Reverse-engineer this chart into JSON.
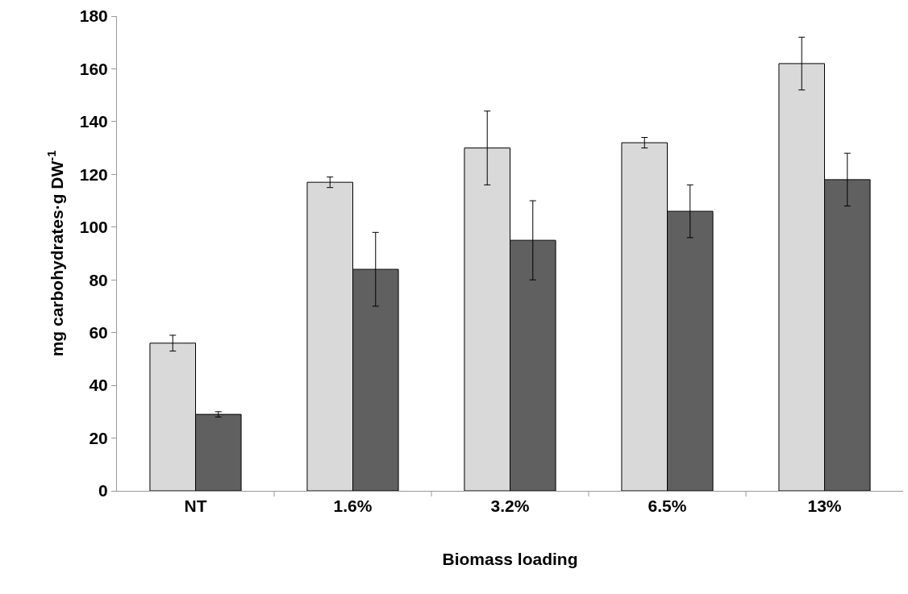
{
  "chart_data": {
    "type": "bar",
    "xlabel": "Biomass loading",
    "ylabel": "mg carbohydrates·g DW$^{-1}$",
    "categories": [
      "NT",
      "1.6%",
      "3.2%",
      "6.5%",
      "13%"
    ],
    "series": [
      {
        "color": "#d9d9d9",
        "values": [
          56,
          117,
          130,
          132,
          162
        ],
        "errors": [
          3,
          2,
          14,
          2,
          10
        ]
      },
      {
        "color": "#606060",
        "values": [
          29,
          84,
          95,
          106,
          118
        ],
        "errors": [
          1,
          14,
          15,
          10,
          10
        ]
      }
    ],
    "ylim": [
      0,
      180
    ],
    "yticks": [
      0,
      20,
      40,
      60,
      80,
      100,
      120,
      140,
      160,
      180
    ],
    "grid": false
  }
}
